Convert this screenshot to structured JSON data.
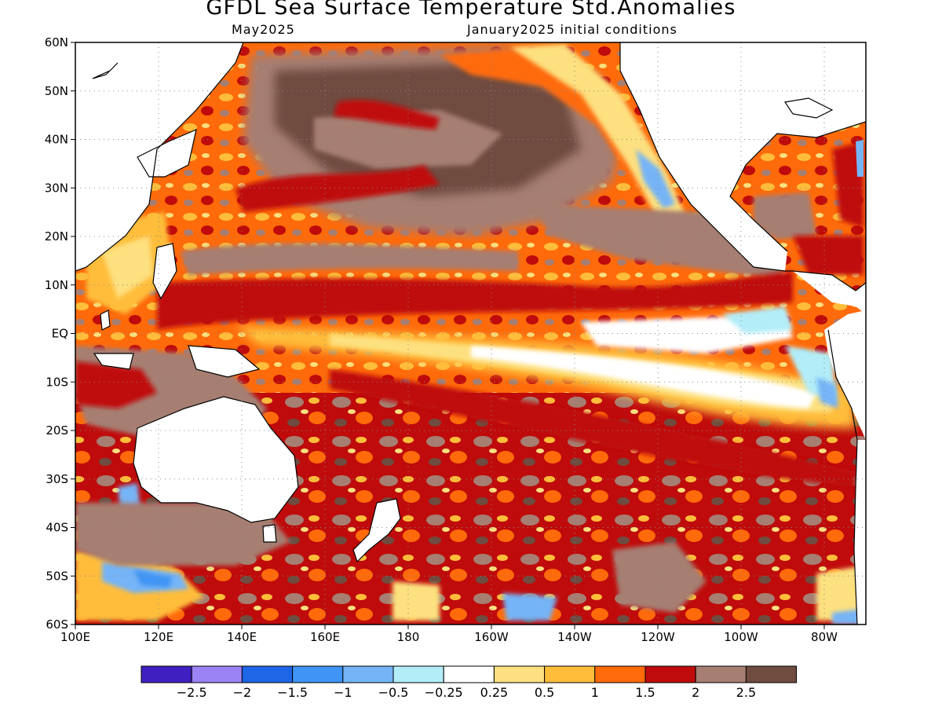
{
  "header": {
    "title": "GFDL Sea Surface Temperature Std.Anomalies",
    "valid_month": "May2025",
    "init_conditions": "January2025 initial conditions"
  },
  "map": {
    "region": "Pacific Ocean",
    "lon_range": [
      100,
      290
    ],
    "lat_range": [
      -60,
      60
    ],
    "grid": "dotted",
    "lat_labels": [
      "60N",
      "50N",
      "40N",
      "30N",
      "20N",
      "10N",
      "EQ",
      "10S",
      "20S",
      "30S",
      "40S",
      "50S",
      "60S"
    ],
    "lon_labels": [
      "100E",
      "120E",
      "140E",
      "160E",
      "180",
      "160W",
      "140W",
      "120W",
      "100W",
      "80W"
    ]
  },
  "colorbar": {
    "colors": [
      "#3f1fbf",
      "#9b83f5",
      "#1f66e6",
      "#3f94f5",
      "#74b4f7",
      "#b2edf8",
      "#ffffff",
      "#fde07f",
      "#ffbd3a",
      "#ff6a0a",
      "#bf0b0b",
      "#a67e72",
      "#6f4b40"
    ],
    "labels": [
      "−2.5",
      "−2",
      "−1.5",
      "−1",
      "−0.5",
      "−0.25",
      "0.25",
      "0.5",
      "1",
      "1.5",
      "2",
      "2.5"
    ]
  }
}
